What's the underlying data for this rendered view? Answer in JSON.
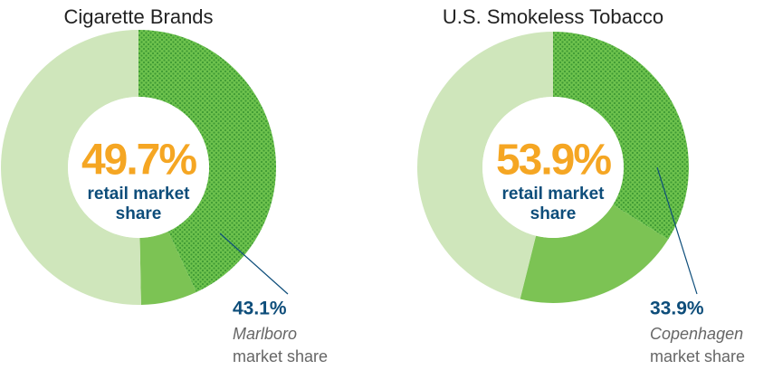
{
  "chart_data": [
    {
      "type": "donut",
      "title": "Cigarette Brands",
      "categories": [
        "Marlboro",
        null,
        null
      ],
      "values": [
        43.1,
        6.6,
        50.3
      ],
      "value_labels": [
        "43.1%",
        null,
        null
      ],
      "colors": [
        "#5fb843",
        "#7cc354",
        "#cfe6bb"
      ],
      "patterns": [
        "dots",
        null,
        null
      ],
      "center_label": "49.7%",
      "center_lines": [
        "retail market",
        "share"
      ],
      "note": "market share"
    },
    {
      "type": "donut",
      "title": "U.S. Smokeless Tobacco",
      "categories": [
        "Copenhagen",
        null,
        null
      ],
      "values": [
        33.9,
        20.0,
        46.1
      ],
      "value_labels": [
        "33.9%",
        null,
        null
      ],
      "colors": [
        "#5fb843",
        "#7cc354",
        "#cfe6bb"
      ],
      "patterns": [
        "dots",
        null,
        null
      ],
      "center_label": "53.9%",
      "center_lines": [
        "retail market",
        "share"
      ],
      "note": "market share"
    }
  ]
}
